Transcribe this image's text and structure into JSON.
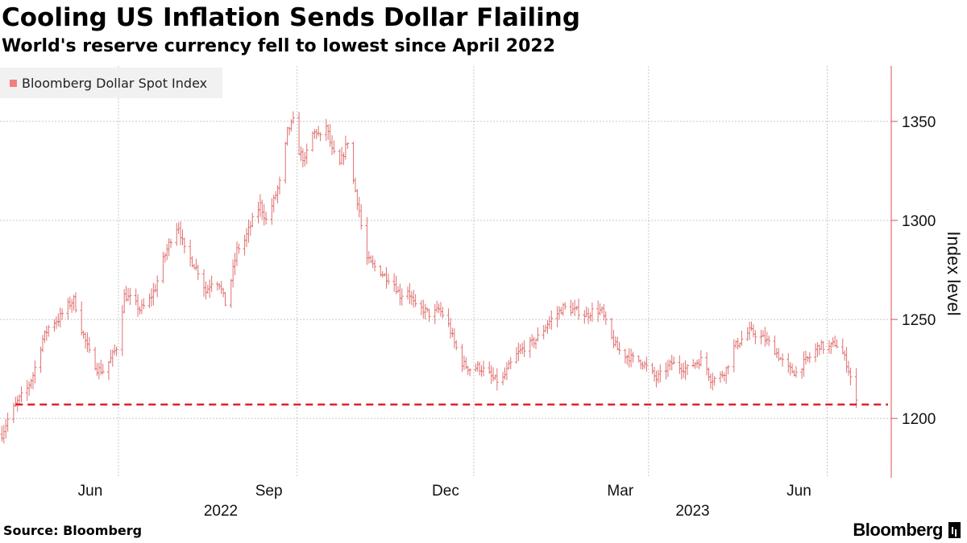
{
  "header": {
    "title": "Cooling US Inflation Sends Dollar Flailing",
    "subtitle": "World's reserve currency fell to lowest since April 2022"
  },
  "legend": {
    "label": "Bloomberg Dollar Spot Index"
  },
  "footer": {
    "source": "Source: Bloomberg",
    "brand": "Bloomberg"
  },
  "colors": {
    "series": "#e07070",
    "reference_line": "#e0202a",
    "axis": "#e07070",
    "grid": "#c8c8c8"
  },
  "chart_data": {
    "type": "line",
    "style": "ohlc-bars",
    "title": "Cooling US Inflation Sends Dollar Flailing",
    "subtitle": "World's reserve currency fell to lowest since April 2022",
    "ylabel": "Index level",
    "xlabel": "",
    "y_axis_side": "right",
    "ylim": [
      1170,
      1378
    ],
    "yticks": [
      1200,
      1250,
      1300,
      1350
    ],
    "xlim_days": [
      0,
      459
    ],
    "x_unit": "days since 2022-04-01",
    "xticks": [
      {
        "label": "Jun",
        "day": 61
      },
      {
        "label": "Sep",
        "day": 153
      },
      {
        "label": "Dec",
        "day": 244
      },
      {
        "label": "Mar",
        "day": 334
      },
      {
        "label": "Jun",
        "day": 426
      }
    ],
    "year_labels": [
      {
        "label": "2022",
        "day": 122
      },
      {
        "label": "2023",
        "day": 365
      }
    ],
    "grid": true,
    "legend": [
      "Bloomberg Dollar Spot Index"
    ],
    "reference_line": {
      "y": 1207,
      "style": "dashed",
      "label": ""
    },
    "series": [
      {
        "name": "Bloomberg Dollar Spot Index",
        "points": [
          [
            1,
            1192
          ],
          [
            5,
            1202
          ],
          [
            10,
            1210
          ],
          [
            14,
            1215
          ],
          [
            17,
            1222
          ],
          [
            22,
            1240
          ],
          [
            26,
            1248
          ],
          [
            30,
            1250
          ],
          [
            34,
            1256
          ],
          [
            38,
            1260
          ],
          [
            42,
            1245
          ],
          [
            46,
            1233
          ],
          [
            50,
            1225
          ],
          [
            53,
            1224
          ],
          [
            57,
            1230
          ],
          [
            60,
            1236
          ],
          [
            64,
            1262
          ],
          [
            68,
            1260
          ],
          [
            72,
            1255
          ],
          [
            76,
            1258
          ],
          [
            80,
            1266
          ],
          [
            84,
            1280
          ],
          [
            87,
            1288
          ],
          [
            90,
            1296
          ],
          [
            92,
            1297
          ],
          [
            95,
            1285
          ],
          [
            99,
            1279
          ],
          [
            103,
            1273
          ],
          [
            106,
            1264
          ],
          [
            110,
            1271
          ],
          [
            113,
            1268
          ],
          [
            116,
            1258
          ],
          [
            119,
            1270
          ],
          [
            122,
            1285
          ],
          [
            126,
            1290
          ],
          [
            130,
            1300
          ],
          [
            134,
            1308
          ],
          [
            137,
            1300
          ],
          [
            141,
            1310
          ],
          [
            145,
            1322
          ],
          [
            148,
            1345
          ],
          [
            151,
            1350
          ],
          [
            154,
            1335
          ],
          [
            157,
            1330
          ],
          [
            160,
            1343
          ],
          [
            163,
            1345
          ],
          [
            166,
            1340
          ],
          [
            168,
            1348
          ],
          [
            171,
            1335
          ],
          [
            175,
            1328
          ],
          [
            179,
            1340
          ],
          [
            182,
            1320
          ],
          [
            185,
            1305
          ],
          [
            188,
            1282
          ],
          [
            191,
            1278
          ],
          [
            195,
            1275
          ],
          [
            198,
            1272
          ],
          [
            202,
            1270
          ],
          [
            206,
            1262
          ],
          [
            210,
            1265
          ],
          [
            214,
            1256
          ],
          [
            218,
            1255
          ],
          [
            222,
            1252
          ],
          [
            226,
            1255
          ],
          [
            230,
            1250
          ],
          [
            234,
            1238
          ],
          [
            238,
            1228
          ],
          [
            242,
            1225
          ],
          [
            246,
            1226
          ],
          [
            250,
            1224
          ],
          [
            254,
            1220
          ],
          [
            258,
            1218
          ],
          [
            262,
            1226
          ],
          [
            266,
            1232
          ],
          [
            270,
            1236
          ],
          [
            274,
            1238
          ],
          [
            278,
            1242
          ],
          [
            282,
            1248
          ],
          [
            286,
            1252
          ],
          [
            290,
            1256
          ],
          [
            294,
            1255
          ],
          [
            298,
            1254
          ],
          [
            302,
            1252
          ],
          [
            306,
            1255
          ],
          [
            310,
            1254
          ],
          [
            314,
            1242
          ],
          [
            318,
            1235
          ],
          [
            322,
            1232
          ],
          [
            326,
            1230
          ],
          [
            330,
            1229
          ],
          [
            334,
            1225
          ],
          [
            338,
            1220
          ],
          [
            342,
            1224
          ],
          [
            346,
            1228
          ],
          [
            350,
            1226
          ],
          [
            354,
            1225
          ],
          [
            358,
            1228
          ],
          [
            362,
            1230
          ],
          [
            366,
            1220
          ],
          [
            370,
            1220
          ],
          [
            374,
            1225
          ],
          [
            378,
            1236
          ],
          [
            382,
            1240
          ],
          [
            386,
            1244
          ],
          [
            390,
            1242
          ],
          [
            394,
            1240
          ],
          [
            398,
            1236
          ],
          [
            402,
            1230
          ],
          [
            406,
            1225
          ],
          [
            410,
            1223
          ],
          [
            414,
            1228
          ],
          [
            418,
            1232
          ],
          [
            422,
            1237
          ],
          [
            426,
            1235
          ],
          [
            430,
            1238
          ],
          [
            433,
            1235
          ],
          [
            436,
            1228
          ],
          [
            438,
            1221
          ],
          [
            440,
            1214
          ],
          [
            441,
            1208
          ]
        ]
      }
    ]
  }
}
